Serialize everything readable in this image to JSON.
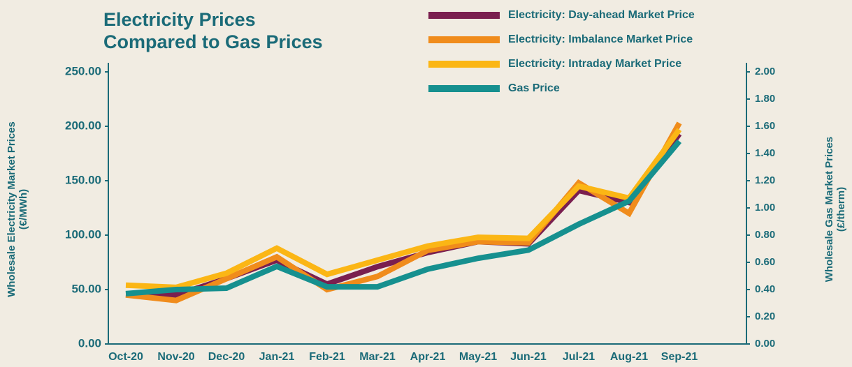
{
  "chart_data": {
    "type": "line",
    "title": [
      "Electricity Prices",
      "Compared to Gas Prices"
    ],
    "ylabel": [
      "Wholesale Electricity Market Prices",
      "(€/MWh)"
    ],
    "y2label": [
      "Wholesale Gas Market Prices",
      "(£/therm)"
    ],
    "categories": [
      "Oct-20",
      "Nov-20",
      "Dec-20",
      "Jan-21",
      "Feb-21",
      "Mar-21",
      "Apr-21",
      "May-21",
      "Jun-21",
      "Jul-21",
      "Aug-21",
      "Sep-21"
    ],
    "series": [
      {
        "name": "Electricity: Day-ahead Market Price",
        "color": "#7a1f4f",
        "values": [
          46,
          45,
          60,
          77,
          55,
          71,
          84,
          94,
          92,
          141,
          130,
          193
        ]
      },
      {
        "name": "Electricity: Imbalance Market Price",
        "color": "#f08c1c",
        "values": [
          45,
          40,
          60,
          80,
          50,
          62,
          86,
          94,
          93,
          148,
          120,
          203
        ]
      },
      {
        "name": "Electricity: Intraday Market Price",
        "color": "#fbb615",
        "values": [
          54,
          52,
          65,
          88,
          64,
          77,
          90,
          98,
          97,
          145,
          134,
          197
        ]
      },
      {
        "name": "Gas Price",
        "color": "#16908f",
        "axis": "y2",
        "values": [
          0.37,
          0.4,
          0.41,
          0.57,
          0.42,
          0.42,
          0.55,
          0.63,
          0.69,
          0.88,
          1.05,
          1.49
        ]
      }
    ],
    "ylim": [
      0,
      250
    ],
    "yticks": [
      {
        "value": 0,
        "label": "0.00"
      },
      {
        "value": 50,
        "label": "50.00"
      },
      {
        "value": 100,
        "label": "100.00"
      },
      {
        "value": 150,
        "label": "150.00"
      },
      {
        "value": 200,
        "label": "200.00"
      },
      {
        "value": 250,
        "label": "250.00"
      }
    ],
    "y2lim": [
      0,
      2
    ],
    "y2ticks": [
      {
        "value": 0,
        "label": "0.00"
      },
      {
        "value": 0.2,
        "label": "0.20"
      },
      {
        "value": 0.4,
        "label": "0.40"
      },
      {
        "value": 0.6,
        "label": "0.60"
      },
      {
        "value": 0.8,
        "label": "0.80"
      },
      {
        "value": 1,
        "label": "1.00"
      },
      {
        "value": 1.2,
        "label": "1.20"
      },
      {
        "value": 1.4,
        "label": "1.40"
      },
      {
        "value": 1.6,
        "label": "1.60"
      },
      {
        "value": 1.8,
        "label": "1.80"
      },
      {
        "value": 2,
        "label": "2.00"
      }
    ]
  }
}
